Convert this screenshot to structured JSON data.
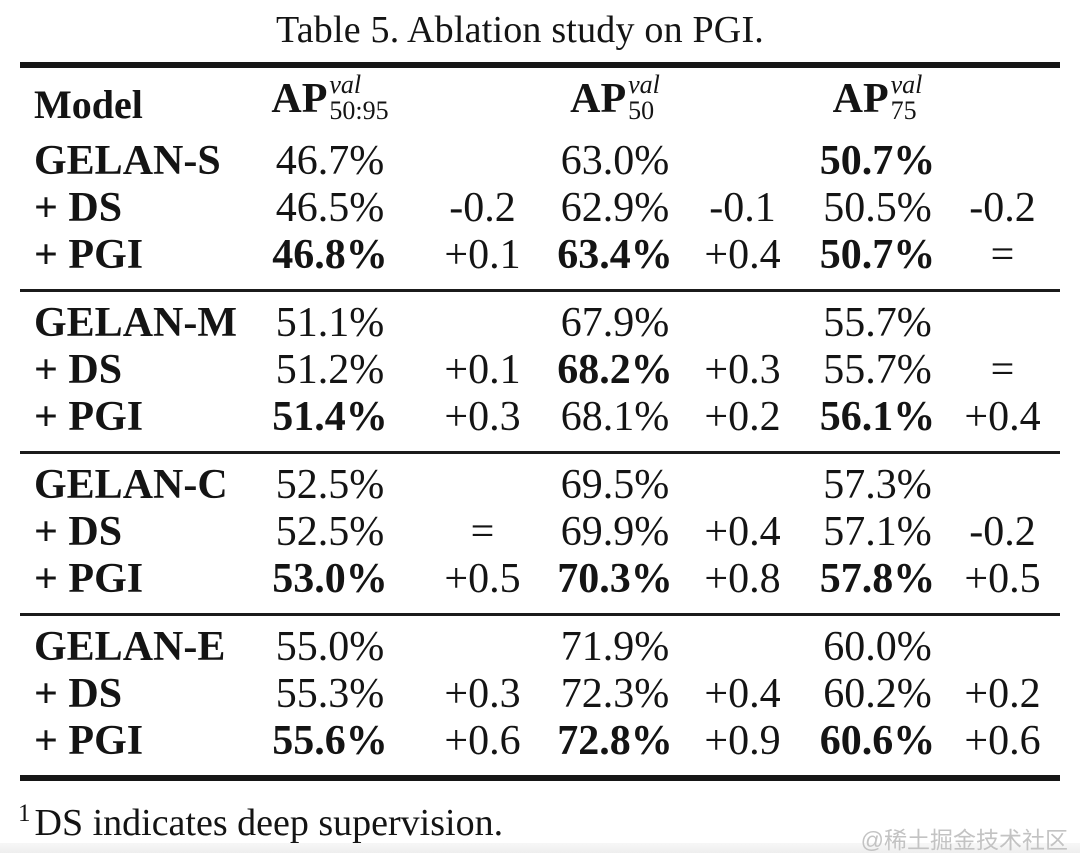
{
  "title": "Table 5. Ablation study on PGI.",
  "header": {
    "model": "Model",
    "ap": "AP",
    "sup": "val",
    "sub1": "50:95",
    "sub2": "50",
    "sub3": "75"
  },
  "blocks": [
    {
      "rows": [
        {
          "model": "GELAN-S",
          "ap5095": "46.7%",
          "d5095": "",
          "ap50": "63.0%",
          "d50": "",
          "ap75": "50.7%",
          "d75": ""
        },
        {
          "model": "+ DS",
          "ap5095": "46.5%",
          "d5095": "-0.2",
          "ap50": "62.9%",
          "d50": "-0.1",
          "ap75": "50.5%",
          "d75": "-0.2"
        },
        {
          "model": "+ PGI",
          "ap5095": "46.8%",
          "d5095": "+0.1",
          "ap50": "63.4%",
          "d50": "+0.4",
          "ap75": "50.7%",
          "d75": "="
        }
      ]
    },
    {
      "rows": [
        {
          "model": "GELAN-M",
          "ap5095": "51.1%",
          "d5095": "",
          "ap50": "67.9%",
          "d50": "",
          "ap75": "55.7%",
          "d75": ""
        },
        {
          "model": "+ DS",
          "ap5095": "51.2%",
          "d5095": "+0.1",
          "ap50": "68.2%",
          "d50": "+0.3",
          "ap75": "55.7%",
          "d75": "="
        },
        {
          "model": "+ PGI",
          "ap5095": "51.4%",
          "d5095": "+0.3",
          "ap50": "68.1%",
          "d50": "+0.2",
          "ap75": "56.1%",
          "d75": "+0.4"
        }
      ]
    },
    {
      "rows": [
        {
          "model": "GELAN-C",
          "ap5095": "52.5%",
          "d5095": "",
          "ap50": "69.5%",
          "d50": "",
          "ap75": "57.3%",
          "d75": ""
        },
        {
          "model": "+ DS",
          "ap5095": "52.5%",
          "d5095": "=",
          "ap50": "69.9%",
          "d50": "+0.4",
          "ap75": "57.1%",
          "d75": "-0.2"
        },
        {
          "model": "+ PGI",
          "ap5095": "53.0%",
          "d5095": "+0.5",
          "ap50": "70.3%",
          "d50": "+0.8",
          "ap75": "57.8%",
          "d75": "+0.5"
        }
      ]
    },
    {
      "rows": [
        {
          "model": "GELAN-E",
          "ap5095": "55.0%",
          "d5095": "",
          "ap50": "71.9%",
          "d50": "",
          "ap75": "60.0%",
          "d75": ""
        },
        {
          "model": "+ DS",
          "ap5095": "55.3%",
          "d5095": "+0.3",
          "ap50": "72.3%",
          "d50": "+0.4",
          "ap75": "60.2%",
          "d75": "+0.2"
        },
        {
          "model": "+ PGI",
          "ap5095": "55.6%",
          "d5095": "+0.6",
          "ap50": "72.8%",
          "d50": "+0.9",
          "ap75": "60.6%",
          "d75": "+0.6"
        }
      ]
    }
  ],
  "footnote": {
    "marker": "1",
    "text": "DS indicates deep supervision."
  },
  "watermark": "@稀土掘金技术社区",
  "colors": {
    "text": "#141414",
    "rule": "#161616",
    "watermark": "#c3c3c3",
    "background": "#ffffff"
  }
}
